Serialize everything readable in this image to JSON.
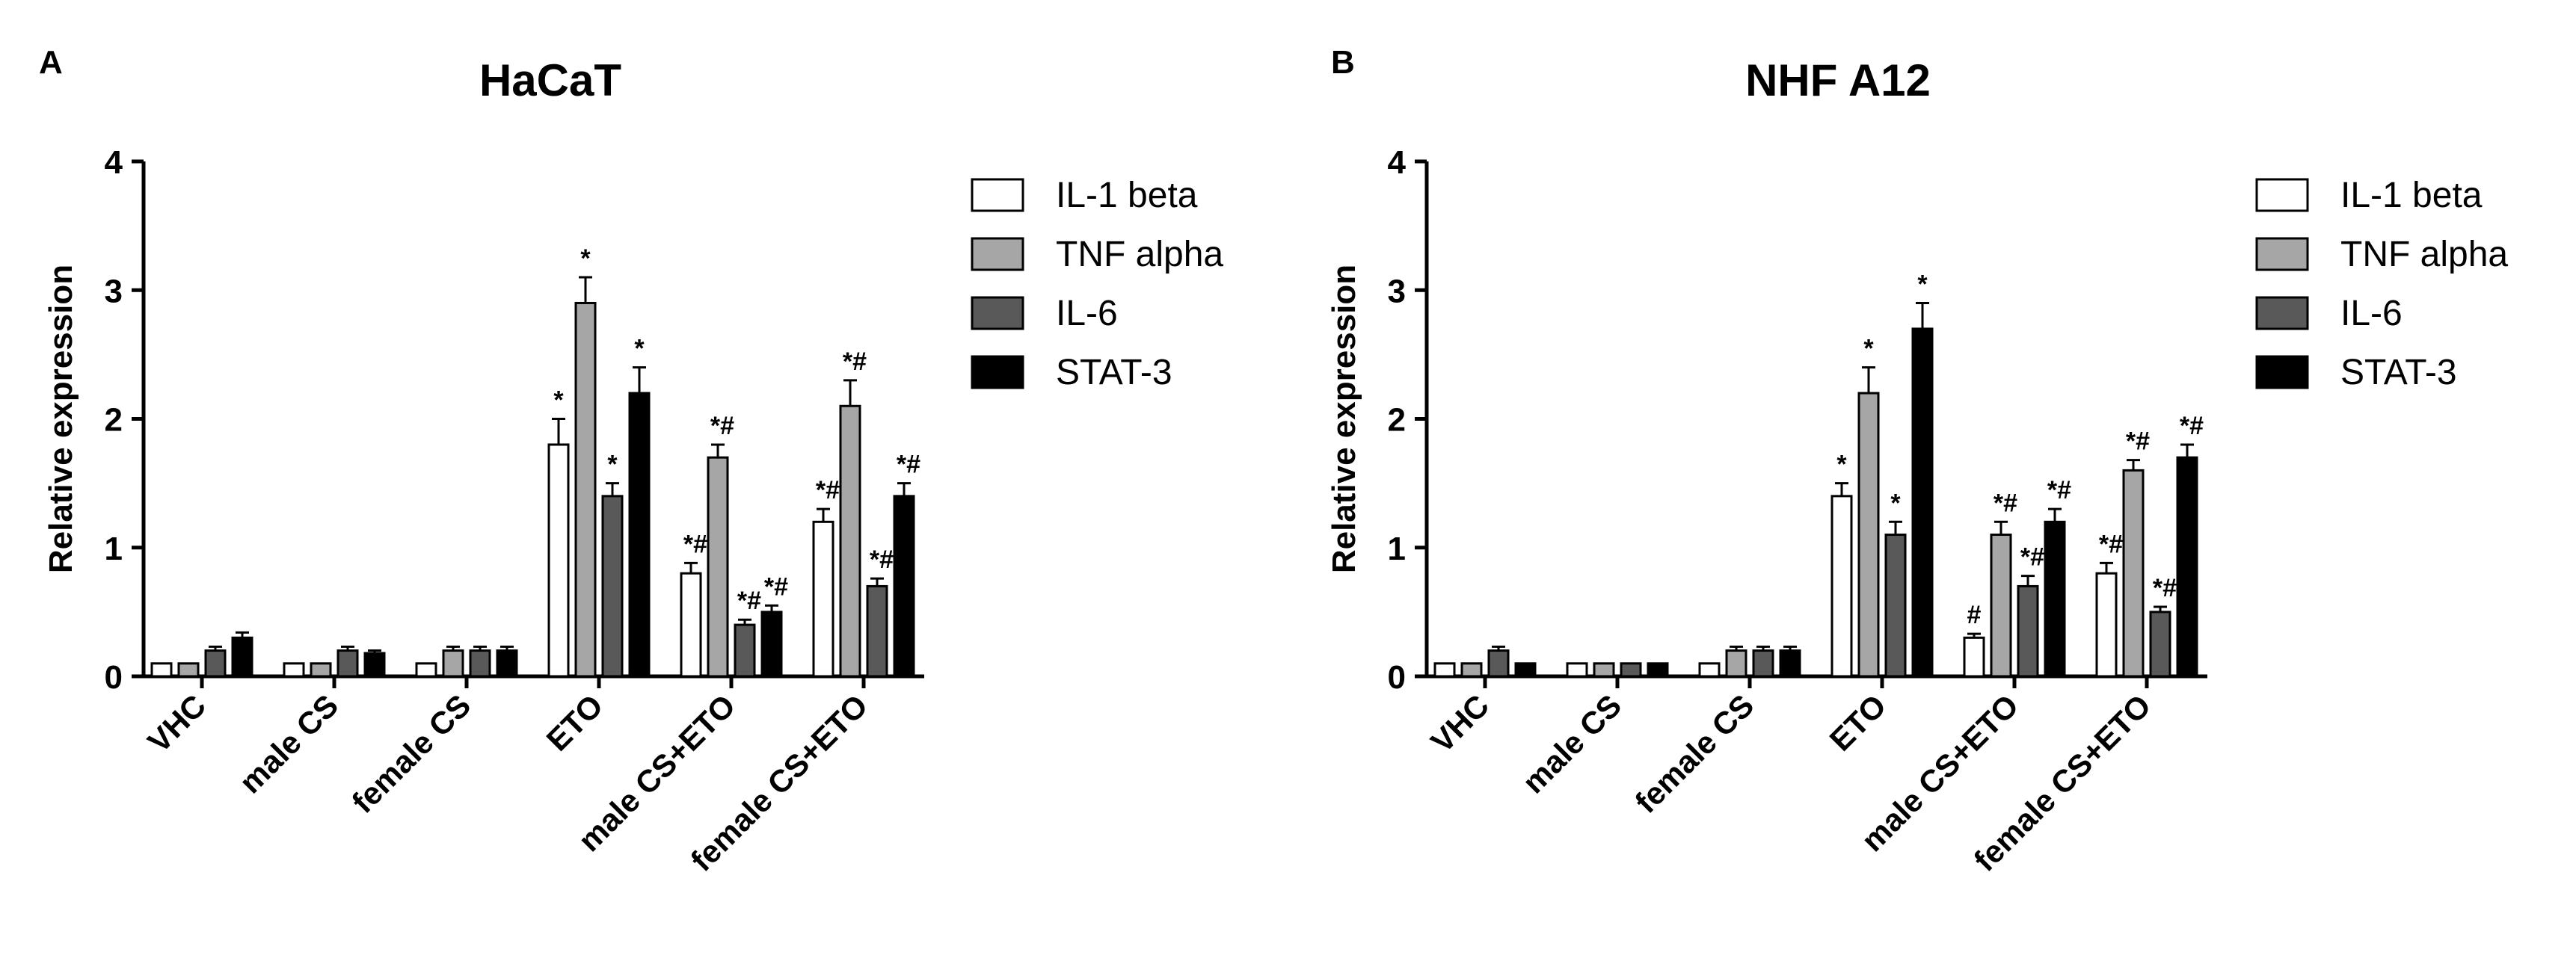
{
  "panels": [
    {
      "letter": "A",
      "title": "HaCaT"
    },
    {
      "letter": "B",
      "title": "NHF A12"
    }
  ],
  "chart_data": [
    {
      "type": "bar",
      "title": "HaCaT",
      "xlabel": "",
      "ylabel": "Relative expression",
      "ylim": [
        0,
        4
      ],
      "yticks": [
        0,
        1,
        2,
        3,
        4
      ],
      "legend_position": "right",
      "categories": [
        "VHC",
        "male CS",
        "female CS",
        "ETO",
        "male CS+ETO",
        "female CS+ETO"
      ],
      "series": [
        {
          "name": "IL-1 beta",
          "color": "#ffffff",
          "values": [
            0.1,
            0.1,
            0.1,
            1.8,
            0.8,
            1.2
          ],
          "errors": [
            0,
            0,
            0,
            0.2,
            0.08,
            0.1
          ],
          "labels": [
            "",
            "",
            "",
            "*",
            "*#",
            "*#"
          ]
        },
        {
          "name": "TNF alpha",
          "color": "#a6a6a6",
          "values": [
            0.1,
            0.1,
            0.2,
            2.9,
            1.7,
            2.1
          ],
          "errors": [
            0,
            0,
            0.03,
            0.2,
            0.1,
            0.2
          ],
          "labels": [
            "",
            "",
            "",
            "*",
            "*#",
            "*#"
          ]
        },
        {
          "name": "IL-6",
          "color": "#595959",
          "values": [
            0.2,
            0.2,
            0.2,
            1.4,
            0.4,
            0.7
          ],
          "errors": [
            0.03,
            0.03,
            0.03,
            0.1,
            0.04,
            0.06
          ],
          "labels": [
            "",
            "",
            "",
            "*",
            "*#",
            "*#"
          ]
        },
        {
          "name": "STAT-3",
          "color": "#000000",
          "values": [
            0.3,
            0.18,
            0.2,
            2.2,
            0.5,
            1.4
          ],
          "errors": [
            0.04,
            0.02,
            0.03,
            0.2,
            0.05,
            0.1
          ],
          "labels": [
            "",
            "",
            "",
            "*",
            "*#",
            "*#"
          ]
        }
      ]
    },
    {
      "type": "bar",
      "title": "NHF A12",
      "xlabel": "",
      "ylabel": "Relative expression",
      "ylim": [
        0,
        4
      ],
      "yticks": [
        0,
        1,
        2,
        3,
        4
      ],
      "legend_position": "right",
      "categories": [
        "VHC",
        "male CS",
        "female CS",
        "ETO",
        "male CS+ETO",
        "female CS+ETO"
      ],
      "series": [
        {
          "name": "IL-1 beta",
          "color": "#ffffff",
          "values": [
            0.1,
            0.1,
            0.1,
            1.4,
            0.3,
            0.8
          ],
          "errors": [
            0,
            0,
            0,
            0.1,
            0.03,
            0.08
          ],
          "labels": [
            "",
            "",
            "",
            "*",
            "#",
            "*#"
          ]
        },
        {
          "name": "TNF alpha",
          "color": "#a6a6a6",
          "values": [
            0.1,
            0.1,
            0.2,
            2.2,
            1.1,
            1.6
          ],
          "errors": [
            0,
            0,
            0.03,
            0.2,
            0.1,
            0.08
          ],
          "labels": [
            "",
            "",
            "",
            "*",
            "*#",
            "*#"
          ]
        },
        {
          "name": "IL-6",
          "color": "#595959",
          "values": [
            0.2,
            0.1,
            0.2,
            1.1,
            0.7,
            0.5
          ],
          "errors": [
            0.03,
            0,
            0.03,
            0.1,
            0.08,
            0.04
          ],
          "labels": [
            "",
            "",
            "",
            "*",
            "*#",
            "*#"
          ]
        },
        {
          "name": "STAT-3",
          "color": "#000000",
          "values": [
            0.1,
            0.1,
            0.2,
            2.7,
            1.2,
            1.7
          ],
          "errors": [
            0,
            0,
            0.03,
            0.2,
            0.1,
            0.1
          ],
          "labels": [
            "",
            "",
            "",
            "*",
            "*#",
            "*#"
          ]
        }
      ]
    }
  ]
}
